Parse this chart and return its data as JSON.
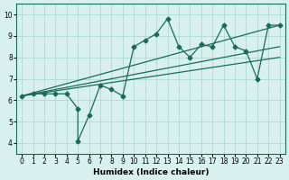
{
  "xlabel": "Humidex (Indice chaleur)",
  "bg_color": "#d8f0ee",
  "line_color": "#1a6b5a",
  "grid_color": "#b0d8d4",
  "xlim": [
    -0.5,
    23.5
  ],
  "ylim": [
    3.5,
    10.5
  ],
  "xticks": [
    0,
    1,
    2,
    3,
    4,
    5,
    6,
    7,
    8,
    9,
    10,
    11,
    12,
    13,
    14,
    15,
    16,
    17,
    18,
    19,
    20,
    21,
    22,
    23
  ],
  "yticks": [
    4,
    5,
    6,
    7,
    8,
    9,
    10
  ],
  "scatter_x": [
    0,
    1,
    2,
    3,
    4,
    5,
    5,
    6,
    7,
    8,
    9,
    10,
    11,
    12,
    13,
    14,
    15,
    16,
    17,
    18,
    19,
    20,
    21,
    22,
    23
  ],
  "scatter_y": [
    6.2,
    6.3,
    6.3,
    6.3,
    6.3,
    5.6,
    4.1,
    5.3,
    6.7,
    6.5,
    6.2,
    8.5,
    8.8,
    9.1,
    9.8,
    8.5,
    8.0,
    8.6,
    8.5,
    9.5,
    8.5,
    8.3,
    7.0,
    9.5,
    9.5
  ],
  "line1_x": [
    0,
    23
  ],
  "line1_y": [
    6.2,
    9.5
  ],
  "line2_x": [
    0,
    23
  ],
  "line2_y": [
    6.2,
    8.5
  ],
  "line3_x": [
    0,
    23
  ],
  "line3_y": [
    6.2,
    8.0
  ]
}
